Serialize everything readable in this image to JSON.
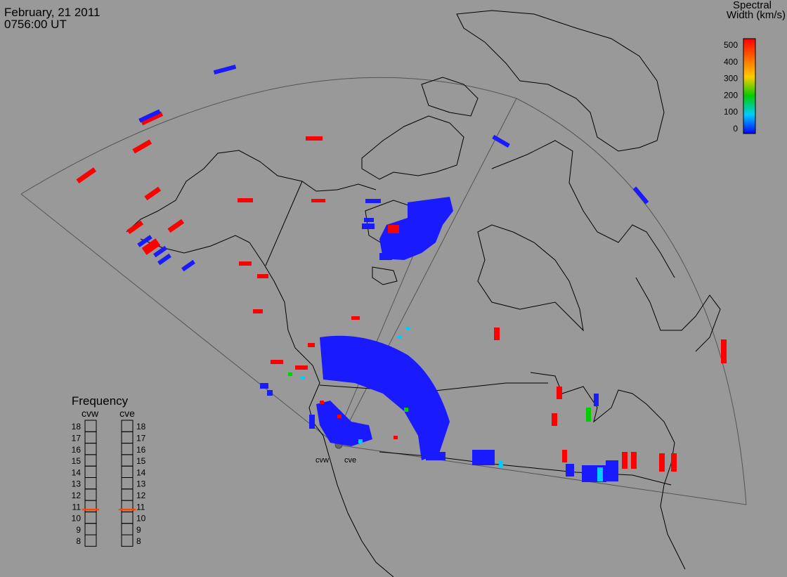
{
  "header": {
    "date": "February, 21 2011",
    "time": "0756:00 UT"
  },
  "colorbar": {
    "title_line1": "Spectral",
    "title_line2": "Width (km/s)",
    "ticks": [
      "500",
      "400",
      "300",
      "200",
      "100",
      "0"
    ],
    "colors": [
      "#ff0000",
      "#ff6600",
      "#ffcc00",
      "#00cc00",
      "#00ccff",
      "#0000ff"
    ]
  },
  "frequency": {
    "title": "Frequency",
    "radar_left": "cvw",
    "radar_right": "cve",
    "ticks": [
      "18",
      "17",
      "16",
      "15",
      "14",
      "13",
      "12",
      "11",
      "10",
      "9",
      "8"
    ],
    "cvw_mhz": 10.7,
    "cve_mhz": 10.7,
    "marker_color": "#ff4400"
  },
  "radar_labels": {
    "west": "cvw",
    "east": "cve"
  },
  "colors": {
    "background": "#999999",
    "coast": "#000000",
    "fov_line": "#555555",
    "high_width": "#ff0000",
    "low_width": "#0000ff",
    "mid_width": "#00ccff"
  }
}
